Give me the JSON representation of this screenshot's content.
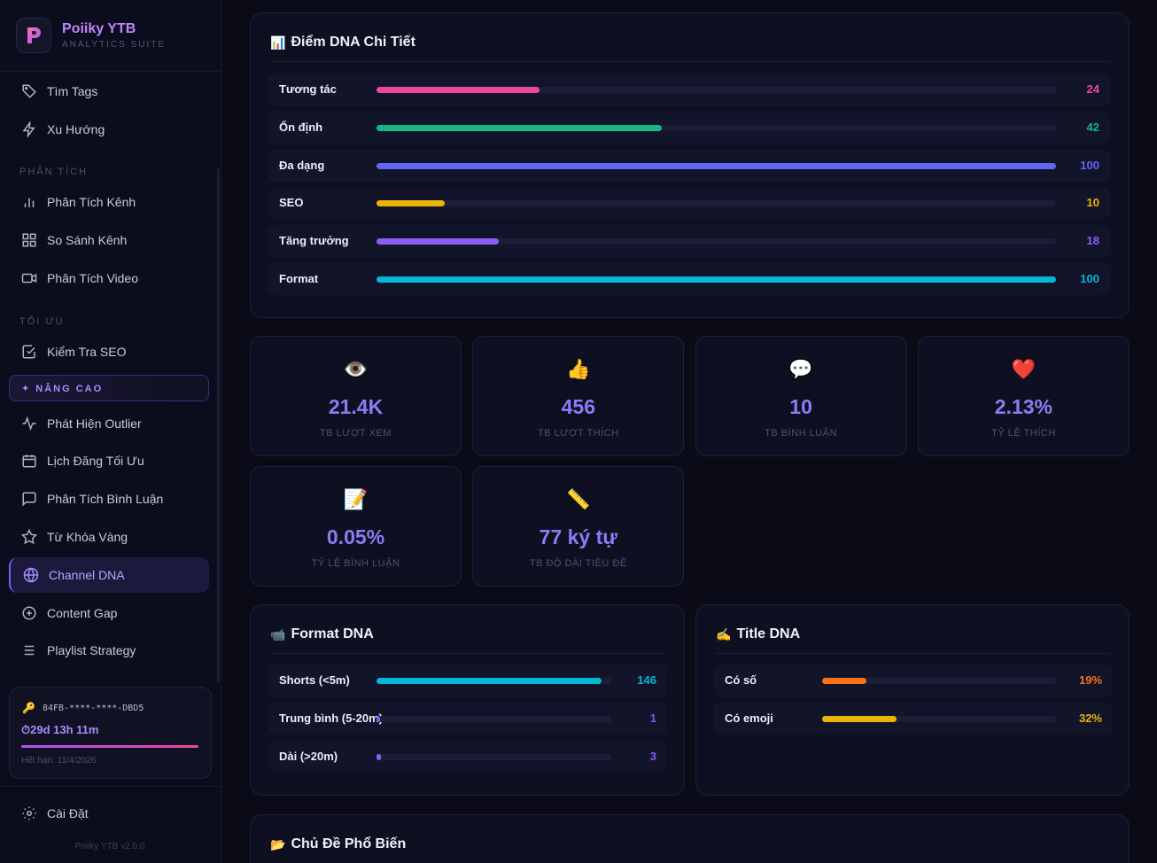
{
  "brand": {
    "title": "Poiiky YTB",
    "subtitle": "ANALYTICS SUITE"
  },
  "sidebar": {
    "items_top": [
      {
        "label": "Tìm Tags",
        "icon": "tag-icon"
      },
      {
        "label": "Xu Hướng",
        "icon": "lightning-icon"
      }
    ],
    "section_analysis": "PHÂN TÍCH",
    "items_analysis": [
      {
        "label": "Phân Tích Kênh",
        "icon": "bar-chart-icon"
      },
      {
        "label": "So Sánh Kênh",
        "icon": "grid-icon"
      },
      {
        "label": "Phân Tích Video",
        "icon": "video-icon"
      }
    ],
    "section_optimize": "TỐI ƯU",
    "items_optimize": [
      {
        "label": "Kiểm Tra SEO",
        "icon": "check-square-icon"
      }
    ],
    "section_pro": "✦ NÂNG CAO",
    "items_pro": [
      {
        "label": "Phát Hiện Outlier",
        "icon": "pulse-icon"
      },
      {
        "label": "Lịch Đăng Tối Ưu",
        "icon": "calendar-icon"
      },
      {
        "label": "Phân Tích Bình Luận",
        "icon": "comment-icon"
      },
      {
        "label": "Từ Khóa Vàng",
        "icon": "star-icon"
      },
      {
        "label": "Channel DNA",
        "icon": "globe-icon",
        "active": true
      },
      {
        "label": "Content Gap",
        "icon": "plus-circle-icon"
      },
      {
        "label": "Playlist Strategy",
        "icon": "list-icon"
      }
    ],
    "license": {
      "key": "84FB-****-****-DBD5",
      "time_left": "⏱29d 13h 11m",
      "expiry": "Hết hạn: 11/4/2026",
      "progress": 0.98
    },
    "settings": "Cài Đặt",
    "version": "Poiiky YTB v2.0.0"
  },
  "dna_scores": {
    "title": "Điểm DNA Chi Tiết",
    "emoji": "📊",
    "rows": [
      {
        "label": "Tương tác",
        "value": 24,
        "color": "#ec4899"
      },
      {
        "label": "Ổn định",
        "value": 42,
        "color": "#10b981"
      },
      {
        "label": "Đa dạng",
        "value": 100,
        "color": "#6366f1"
      },
      {
        "label": "SEO",
        "value": 10,
        "color": "#eab308"
      },
      {
        "label": "Tăng trưởng",
        "value": 18,
        "color": "#8b5cf6"
      },
      {
        "label": "Format",
        "value": 100,
        "color": "#06b6d4"
      }
    ]
  },
  "stats": [
    {
      "emoji": "👁️",
      "value": "21.4K",
      "label": "TB LƯỢT XEM"
    },
    {
      "emoji": "👍",
      "value": "456",
      "label": "TB LƯỢT THÍCH"
    },
    {
      "emoji": "💬",
      "value": "10",
      "label": "TB BÌNH LUẬN"
    },
    {
      "emoji": "❤️",
      "value": "2.13%",
      "label": "TỶ LỆ THÍCH"
    },
    {
      "emoji": "📝",
      "value": "0.05%",
      "label": "TỶ LỆ BÌNH LUẬN"
    },
    {
      "emoji": "📏",
      "value": "77 ký tự",
      "label": "TB ĐỘ DÀI TIÊU ĐỀ"
    }
  ],
  "format_dna": {
    "title": "Format DNA",
    "emoji": "📹",
    "rows": [
      {
        "label": "Shorts (<5m)",
        "value": "146",
        "fraction": 0.96,
        "color": "#06b6d4"
      },
      {
        "label": "Trung bình (5-20m)",
        "value": "1",
        "fraction": 0.01,
        "color": "#6366f1"
      },
      {
        "label": "Dài (>20m)",
        "value": "3",
        "fraction": 0.02,
        "color": "#8b5cf6"
      }
    ]
  },
  "title_dna": {
    "title": "Title DNA",
    "emoji": "✍️",
    "rows": [
      {
        "label": "Có số",
        "value": "19%",
        "fraction": 0.19,
        "color": "#f97316"
      },
      {
        "label": "Có emoji",
        "value": "32%",
        "fraction": 0.32,
        "color": "#eab308"
      }
    ]
  },
  "topics": {
    "title": "Chủ Đề Phổ Biến",
    "emoji": "📂"
  }
}
